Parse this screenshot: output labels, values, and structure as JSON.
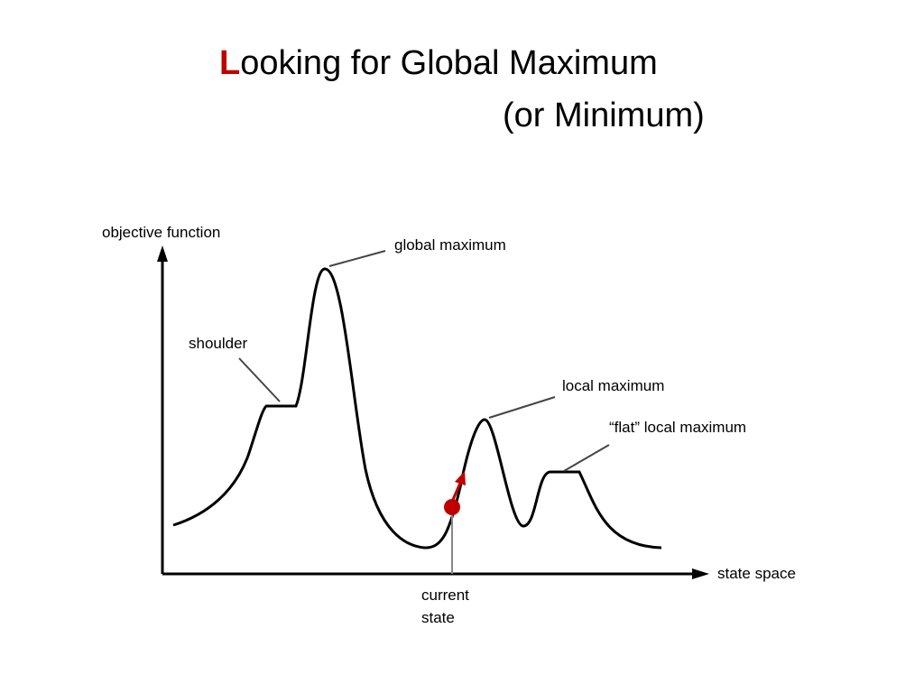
{
  "header": {
    "title_first_letter": "L",
    "title_rest": "ooking for Global Maximum",
    "title_line2": "(or Minimum)"
  },
  "diagram": {
    "y_axis_label": "objective function",
    "x_axis_label": "state space",
    "labels": {
      "global_maximum": "global maximum",
      "shoulder": "shoulder",
      "local_maximum": "local maximum",
      "flat_local_maximum": "“flat” local maximum",
      "current_state_line1": "current",
      "current_state_line2": "state"
    }
  }
}
